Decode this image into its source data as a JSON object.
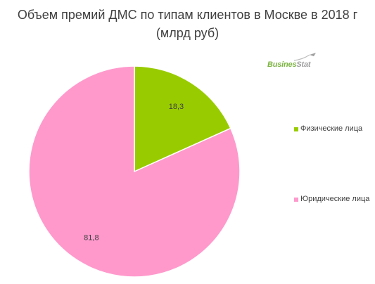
{
  "title_line1": "Объем премий ДМС по типам клиентов в Москве в 2018 г",
  "title_line2": "(млрд руб)",
  "logo": {
    "text_part1": "Busines",
    "text_part2": "Stat"
  },
  "colors": {
    "physical": "#99cc00",
    "legal": "#ff99cc",
    "text": "#404040"
  },
  "chart_data": {
    "type": "pie",
    "title": "Объем премий ДМС по типам клиентов в Москве в 2018 г (млрд руб)",
    "categories": [
      "Физические лица",
      "Юридические лица"
    ],
    "values": [
      18.3,
      81.8
    ],
    "labels": [
      "18,3",
      "81,8"
    ],
    "start_angle": "12 o'clock",
    "direction": "clockwise",
    "legend_position": "right"
  },
  "legend": [
    {
      "label": "Физические лица"
    },
    {
      "label": "Юридические лица"
    }
  ]
}
